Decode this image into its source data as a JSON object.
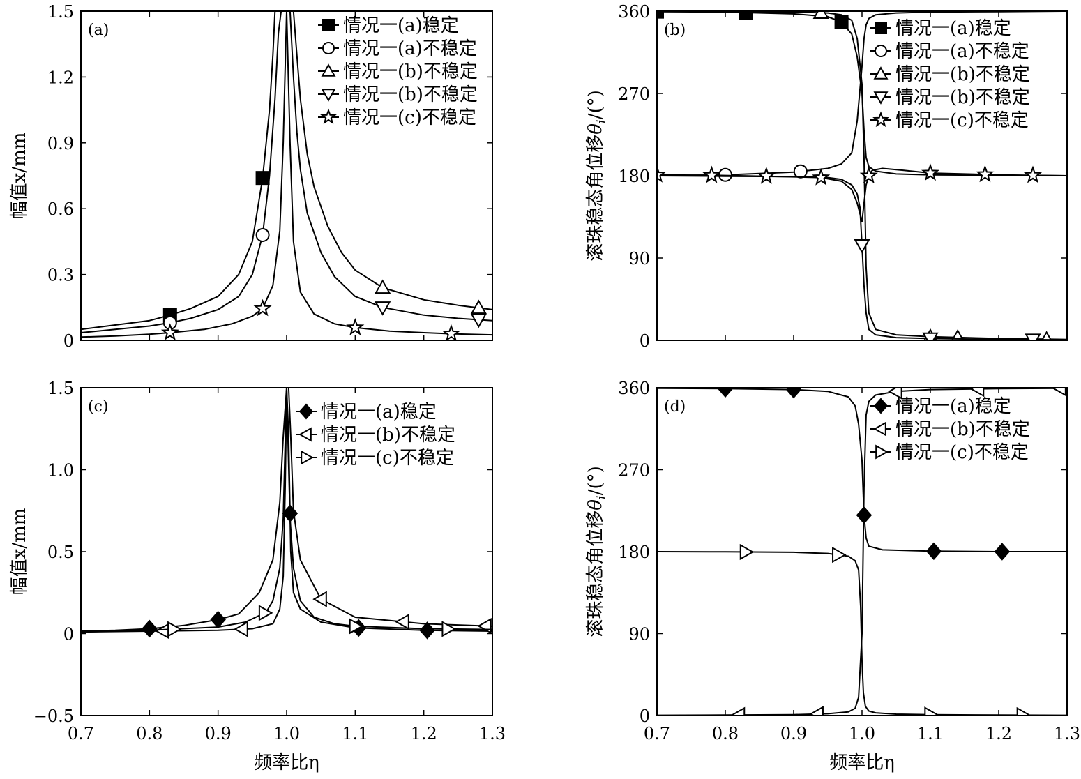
{
  "chart_data": [
    {
      "id": "a",
      "type": "line",
      "panel_label": "(a)",
      "ylabel": "幅值x/mm",
      "xlabel": "",
      "xlim": [
        0.7,
        1.3
      ],
      "ylim": [
        0,
        1.5
      ],
      "xticks": [
        "0.7",
        "0.8",
        "0.9",
        "1.0",
        "1.1",
        "1.2",
        "1.3"
      ],
      "xtick_values": [
        0.7,
        0.8,
        0.9,
        1.0,
        1.1,
        1.2,
        1.3
      ],
      "xticks_labeled": false,
      "yticks": [
        "0",
        "0.3",
        "0.6",
        "0.9",
        "1.2",
        "1.5"
      ],
      "ytick_values": [
        0,
        0.3,
        0.6,
        0.9,
        1.2,
        1.5
      ],
      "legend_position": "top-right",
      "series": [
        {
          "name": "情况一(a)稳定",
          "marker": "square-filled",
          "x": [
            0.7,
            0.75,
            0.8,
            0.83,
            0.86,
            0.9,
            0.93,
            0.95,
            0.965,
            0.975,
            0.98,
            0.983,
            0.986,
            0.989
          ],
          "y": [
            0.05,
            0.07,
            0.09,
            0.115,
            0.145,
            0.2,
            0.3,
            0.45,
            0.74,
            1.05,
            1.3,
            1.5,
            1.5,
            1.5
          ],
          "marker_x": [
            0.83,
            0.965
          ]
        },
        {
          "name": "情况一(a)不稳定",
          "marker": "circle-open",
          "x": [
            0.7,
            0.75,
            0.8,
            0.83,
            0.86,
            0.9,
            0.93,
            0.95,
            0.965,
            0.975,
            0.983,
            0.988,
            0.992
          ],
          "y": [
            0.035,
            0.05,
            0.065,
            0.08,
            0.1,
            0.14,
            0.2,
            0.3,
            0.48,
            0.75,
            1.1,
            1.4,
            1.5
          ],
          "marker_x": [
            0.83,
            0.965
          ]
        },
        {
          "name": "情况一(b)不稳定",
          "marker": "triangle-up-open",
          "x": [
            1.01,
            1.015,
            1.02,
            1.03,
            1.04,
            1.06,
            1.08,
            1.1,
            1.14,
            1.2,
            1.25,
            1.3
          ],
          "y": [
            1.5,
            1.3,
            1.1,
            0.85,
            0.7,
            0.52,
            0.4,
            0.32,
            0.24,
            0.185,
            0.16,
            0.14
          ],
          "marker_x": [
            1.14,
            1.28
          ]
        },
        {
          "name": "情况一(b)不稳定",
          "marker": "triangle-down-open",
          "x": [
            1.005,
            1.01,
            1.015,
            1.02,
            1.03,
            1.05,
            1.07,
            1.1,
            1.14,
            1.2,
            1.25,
            1.3
          ],
          "y": [
            1.5,
            1.2,
            0.95,
            0.78,
            0.58,
            0.4,
            0.29,
            0.2,
            0.15,
            0.115,
            0.1,
            0.09
          ],
          "marker_x": [
            1.14,
            1.28
          ]
        },
        {
          "name": "情况一(c)不稳定",
          "marker": "star-open",
          "x": [
            0.7,
            0.75,
            0.8,
            0.83,
            0.88,
            0.92,
            0.95,
            0.965,
            0.98,
            0.99,
            0.995,
            1.0,
            1.005,
            1.01,
            1.02,
            1.04,
            1.07,
            1.1,
            1.15,
            1.2,
            1.24,
            1.3
          ],
          "y": [
            0.015,
            0.02,
            0.028,
            0.035,
            0.05,
            0.075,
            0.11,
            0.145,
            0.25,
            0.5,
            0.9,
            1.5,
            0.9,
            0.45,
            0.22,
            0.12,
            0.075,
            0.058,
            0.042,
            0.035,
            0.03,
            0.025
          ],
          "marker_x": [
            0.83,
            0.965,
            1.1,
            1.24
          ]
        }
      ]
    },
    {
      "id": "b",
      "type": "line",
      "panel_label": "(b)",
      "ylabel": "滚珠稳态角位移θi/(°)",
      "ylabel_main": "滚珠稳态角位移",
      "ylabel_sym": "θ",
      "ylabel_sub": "i",
      "ylabel_unit": "/(°)",
      "xlabel": "",
      "xlim": [
        0.7,
        1.3
      ],
      "ylim": [
        0,
        360
      ],
      "xticks": [
        "0.7",
        "0.8",
        "0.9",
        "1.0",
        "1.1",
        "1.2",
        "1.3"
      ],
      "xtick_values": [
        0.7,
        0.8,
        0.9,
        1.0,
        1.1,
        1.2,
        1.3
      ],
      "xticks_labeled": false,
      "yticks": [
        "0",
        "90",
        "180",
        "270",
        "360"
      ],
      "ytick_values": [
        0,
        90,
        180,
        270,
        360
      ],
      "legend_position": "top-right",
      "series": [
        {
          "name": "情况一(a)稳定",
          "marker": "square-filled",
          "x": [
            0.7,
            0.8,
            0.9,
            0.95,
            0.97,
            0.985,
            0.993,
            1.0,
            1.003,
            1.006,
            1.01,
            1.02,
            1.05,
            1.1,
            1.2,
            1.3
          ],
          "y": [
            359.5,
            359,
            357,
            354,
            348,
            335,
            310,
            270,
            230,
            200,
            190,
            185,
            182,
            181,
            180.5,
            180
          ],
          "marker_x": [
            0.7,
            0.83,
            0.97
          ]
        },
        {
          "name": "情况一(a)不稳定",
          "marker": "circle-open",
          "x": [
            0.7,
            0.8,
            0.9,
            0.95,
            0.97,
            0.985,
            0.993,
            1.0,
            1.003,
            1.006,
            1.01,
            1.02,
            1.05,
            1.1,
            1.2,
            1.3
          ],
          "y": [
            180,
            181,
            184,
            188,
            193,
            205,
            240,
            300,
            330,
            345,
            352,
            356,
            358,
            359,
            359.5,
            360
          ],
          "marker_x": [
            0.8,
            0.91
          ]
        },
        {
          "name": "情况一(b)不稳定",
          "marker": "triangle-up-open",
          "x": [
            0.7,
            0.8,
            0.9,
            0.95,
            0.97,
            0.985,
            0.993,
            1.0,
            1.003,
            1.006,
            1.01,
            1.02,
            1.05,
            1.1,
            1.2,
            1.3
          ],
          "y": [
            360,
            359.5,
            359,
            358,
            356,
            350,
            330,
            280,
            200,
            80,
            30,
            12,
            6,
            4,
            2,
            1
          ],
          "marker_x": [
            0.94,
            1.1,
            1.14,
            1.27
          ]
        },
        {
          "name": "情况一(b)不稳定",
          "marker": "triangle-down-open",
          "x": [
            0.7,
            0.8,
            0.9,
            0.95,
            0.97,
            0.985,
            0.993,
            0.997,
            1.0,
            1.003,
            1.006,
            1.01,
            1.02,
            1.05,
            1.1,
            1.2,
            1.3
          ],
          "y": [
            180,
            179.5,
            179,
            178,
            176,
            170,
            160,
            145,
            104,
            60,
            30,
            12,
            6,
            3,
            2,
            1,
            0.5
          ],
          "marker_x": [
            1.0,
            1.1,
            1.25
          ]
        },
        {
          "name": "情况一(c)不稳定",
          "marker": "star-open",
          "x": [
            0.7,
            0.78,
            0.86,
            0.94,
            0.97,
            0.985,
            0.993,
            1.0,
            1.003,
            1.006,
            1.01,
            1.015,
            1.03,
            1.06,
            1.1,
            1.2,
            1.3
          ],
          "y": [
            181,
            180.5,
            179.5,
            178,
            174,
            165,
            150,
            130,
            150,
            170,
            180,
            186,
            188,
            186,
            183,
            181,
            180
          ],
          "marker_x": [
            0.7,
            0.78,
            0.86,
            0.94,
            1.01,
            1.1,
            1.18,
            1.25
          ]
        }
      ]
    },
    {
      "id": "c",
      "type": "line",
      "panel_label": "(c)",
      "ylabel": "幅值x/mm",
      "xlabel": "频率比η",
      "xlim": [
        0.7,
        1.3
      ],
      "ylim": [
        -0.5,
        1.5
      ],
      "xticks": [
        "0.7",
        "0.8",
        "0.9",
        "1.0",
        "1.1",
        "1.2",
        "1.3"
      ],
      "xtick_values": [
        0.7,
        0.8,
        0.9,
        1.0,
        1.1,
        1.2,
        1.3
      ],
      "xticks_labeled": true,
      "yticks": [
        "−0.5",
        "0",
        "0.5",
        "1.0",
        "1.5"
      ],
      "ytick_values": [
        -0.5,
        0,
        0.5,
        1.0,
        1.5
      ],
      "legend_position": "top-right",
      "series": [
        {
          "name": "情况一(a)稳定",
          "marker": "diamond-filled",
          "x": [
            0.7,
            0.75,
            0.8,
            0.85,
            0.9,
            0.93,
            0.96,
            0.98,
            0.99,
            0.995,
            1.0,
            1.003,
            1.006,
            1.01,
            1.02,
            1.05,
            1.1,
            1.2,
            1.3
          ],
          "y": [
            0.015,
            0.02,
            0.03,
            0.05,
            0.085,
            0.12,
            0.25,
            0.45,
            0.8,
            1.2,
            1.5,
            1.2,
            0.5,
            0.25,
            0.15,
            0.07,
            0.035,
            0.02,
            0.015
          ],
          "marker_x": [
            0.8,
            0.9,
            1.005,
            1.105,
            1.205
          ]
        },
        {
          "name": "情况一(b)不稳定",
          "marker": "triangle-left-open",
          "x": [
            0.7,
            0.8,
            0.9,
            0.95,
            0.98,
            0.99,
            0.995,
            0.998,
            1.0,
            1.003,
            1.006,
            1.01,
            1.02,
            1.05,
            1.1,
            1.2,
            1.3
          ],
          "y": [
            0.01,
            0.015,
            0.02,
            0.03,
            0.06,
            0.15,
            0.35,
            0.9,
            1.5,
            1.5,
            1.2,
            0.75,
            0.45,
            0.21,
            0.1,
            0.06,
            0.045
          ],
          "marker_x": [
            0.82,
            0.935,
            1.05,
            1.17,
            1.29
          ]
        },
        {
          "name": "情况一(c)不稳定",
          "marker": "triangle-right-open",
          "x": [
            0.7,
            0.8,
            0.9,
            0.94,
            0.97,
            0.98,
            0.99,
            0.995,
            1.0,
            1.005,
            1.01,
            1.02,
            1.04,
            1.07,
            1.1,
            1.2,
            1.3
          ],
          "y": [
            0.01,
            0.02,
            0.04,
            0.07,
            0.13,
            0.2,
            0.4,
            0.7,
            1.5,
            0.7,
            0.4,
            0.2,
            0.1,
            0.06,
            0.045,
            0.03,
            0.025
          ],
          "marker_x": [
            0.835,
            0.968,
            1.1,
            1.235
          ]
        }
      ]
    },
    {
      "id": "d",
      "type": "line",
      "panel_label": "(d)",
      "ylabel": "滚珠稳态角位移θi/(°)",
      "ylabel_main": "滚珠稳态角位移",
      "ylabel_sym": "θ",
      "ylabel_sub": "i",
      "ylabel_unit": "/(°)",
      "xlabel": "频率比η",
      "xlim": [
        0.7,
        1.3
      ],
      "ylim": [
        0,
        360
      ],
      "xticks": [
        "0.7",
        "0.8",
        "0.9",
        "1.0",
        "1.1",
        "1.2",
        "1.3"
      ],
      "xtick_values": [
        0.7,
        0.8,
        0.9,
        1.0,
        1.1,
        1.2,
        1.3
      ],
      "xticks_labeled": true,
      "yticks": [
        "0",
        "90",
        "180",
        "270",
        "360"
      ],
      "ytick_values": [
        0,
        90,
        180,
        270,
        360
      ],
      "legend_position": "top-right",
      "series": [
        {
          "name": "情况一(a)稳定",
          "marker": "diamond-filled",
          "x": [
            0.7,
            0.8,
            0.9,
            0.95,
            0.98,
            0.99,
            0.995,
            1.0,
            1.003,
            1.006,
            1.01,
            1.03,
            1.1,
            1.2,
            1.3
          ],
          "y": [
            359.5,
            359,
            358,
            356,
            350,
            340,
            320,
            280,
            220,
            195,
            186,
            182,
            180.5,
            180,
            180
          ],
          "marker_x": [
            0.8,
            0.9,
            1.003,
            1.105,
            1.205
          ]
        },
        {
          "name": "情况一(b)不稳定",
          "marker": "triangle-left-open",
          "x": [
            0.7,
            0.8,
            0.9,
            0.95,
            0.98,
            0.99,
            0.995,
            1.0,
            1.003,
            1.006,
            1.01,
            1.02,
            1.05,
            1.1,
            1.2,
            1.3
          ],
          "y": [
            0.3,
            0.5,
            1,
            2,
            4,
            8,
            20,
            90,
            250,
            330,
            345,
            352,
            356,
            358,
            359,
            359.5
          ],
          "marker_x": [
            0.82,
            0.935,
            1.05,
            1.17,
            1.29
          ]
        },
        {
          "name": "情况一(c)不稳定",
          "marker": "triangle-right-open",
          "x": [
            0.7,
            0.8,
            0.9,
            0.95,
            0.98,
            0.99,
            0.995,
            0.998,
            1.0,
            1.002,
            1.005,
            1.01,
            1.02,
            1.05,
            1.1,
            1.2,
            1.3
          ],
          "y": [
            180,
            179.8,
            179.3,
            178,
            175,
            170,
            160,
            120,
            60,
            25,
            10,
            5,
            3,
            1.5,
            1,
            0.5,
            0.3
          ],
          "marker_x": [
            0.83,
            0.965,
            1.1,
            1.235
          ]
        }
      ]
    }
  ]
}
